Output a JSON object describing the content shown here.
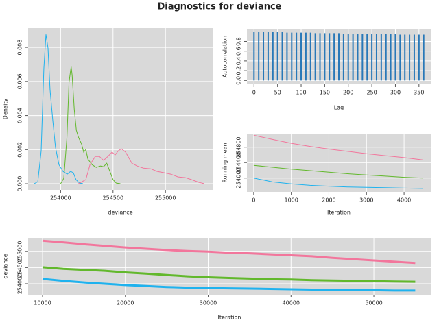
{
  "title": "Diagnostics for deviance",
  "chart_data": [
    {
      "type": "line",
      "xlabel": "deviance",
      "ylabel": "Density",
      "grid": true,
      "xlim": [
        253690,
        255450
      ],
      "ylim": [
        -0.00036,
        0.00913
      ],
      "xticks": [
        254000,
        254500,
        255000
      ],
      "yticks": [
        {
          "value": 0,
          "label": "0.000"
        },
        {
          "value": 0.002,
          "label": "0.002"
        },
        {
          "value": 0.004,
          "label": "0.004"
        },
        {
          "value": 0.006,
          "label": "0.006"
        },
        {
          "value": 0.008,
          "label": "0.008"
        }
      ],
      "series": [
        {
          "color": "#1fb2ee",
          "x": [
            253749,
            253782,
            253814,
            253840,
            253860,
            253880,
            253899,
            253925,
            253951,
            253984,
            254023,
            254063,
            254095,
            254121,
            254147,
            254180,
            254212
          ],
          "values": [
            0,
            0.00012,
            0.00193,
            0.00675,
            0.00876,
            0.00795,
            0.00554,
            0.00373,
            0.00213,
            0.00112,
            0.00072,
            0.00056,
            0.00072,
            0.00064,
            0.00024,
            4e-05,
            0
          ]
        },
        {
          "color": "#62b82c",
          "x": [
            254000,
            254030,
            254060,
            254080,
            254100,
            254110,
            254130,
            254150,
            254170,
            254200,
            254220,
            254240,
            254260,
            254300,
            254340,
            254380,
            254410,
            254440,
            254470,
            254500,
            254530,
            254570
          ],
          "values": [
            0,
            0.00032,
            0.00273,
            0.00594,
            0.00687,
            0.00635,
            0.00434,
            0.00313,
            0.00273,
            0.00233,
            0.00185,
            0.00201,
            0.00145,
            0.00112,
            0.00096,
            0.00104,
            0.001,
            0.0012,
            0.00072,
            0.00024,
            4e-05,
            0
          ]
        },
        {
          "color": "#f2769c",
          "x": [
            254170,
            254240,
            254280,
            254330,
            254370,
            254410,
            254450,
            254490,
            254520,
            254550,
            254580,
            254620,
            254650,
            254680,
            254730,
            254790,
            254860,
            254920,
            254990,
            255050,
            255120,
            255190,
            255250,
            255320,
            255370
          ],
          "values": [
            0,
            0.00024,
            0.00112,
            0.0016,
            0.0016,
            0.00137,
            0.0016,
            0.00185,
            0.00169,
            0.00193,
            0.00205,
            0.00185,
            0.00153,
            0.0012,
            0.00104,
            0.00092,
            0.00088,
            0.00072,
            0.00064,
            0.00056,
            0.0004,
            0.00036,
            0.00024,
            8e-05,
            0
          ]
        }
      ]
    },
    {
      "type": "bar",
      "xlabel": "Lag",
      "ylabel": "Autocorrelation",
      "grid": true,
      "color": "#2878b8",
      "xlim": [
        -15,
        375
      ],
      "ylim": [
        -0.08,
        1.06
      ],
      "xticks": [
        0,
        50,
        100,
        150,
        200,
        250,
        300,
        350
      ],
      "yticks": [
        {
          "value": 0,
          "label": "0.0"
        },
        0.2,
        0.4,
        0.6,
        0.8
      ],
      "x": [
        0,
        10,
        20,
        30,
        40,
        50,
        60,
        70,
        80,
        90,
        100,
        110,
        120,
        130,
        140,
        150,
        160,
        170,
        180,
        190,
        200,
        210,
        220,
        230,
        240,
        250,
        260,
        270,
        280,
        290,
        300,
        310,
        320,
        330,
        340,
        350,
        360
      ],
      "values": [
        1,
        0.99,
        0.99,
        0.99,
        0.99,
        0.99,
        0.99,
        0.98,
        0.98,
        0.98,
        0.98,
        0.98,
        0.98,
        0.97,
        0.97,
        0.97,
        0.97,
        0.97,
        0.97,
        0.96,
        0.96,
        0.96,
        0.96,
        0.96,
        0.96,
        0.95,
        0.95,
        0.95,
        0.95,
        0.95,
        0.95,
        0.94,
        0.94,
        0.94,
        0.94,
        0.94,
        0.94
      ]
    },
    {
      "type": "line",
      "xlabel": "Iteration",
      "ylabel": "Running mean",
      "grid": true,
      "xlim": [
        -180,
        4710
      ],
      "ylim": [
        253640,
        255150
      ],
      "xticks": [
        0,
        1000,
        2000,
        3000,
        4000
      ],
      "yticks": [
        254000,
        254400,
        254800
      ],
      "x": [
        0,
        500,
        1000,
        1500,
        2000,
        2500,
        3000,
        3500,
        4000,
        4500
      ],
      "series": [
        {
          "color": "#f2769c",
          "values": [
            255110,
            255000,
            254900,
            254820,
            254750,
            254690,
            254630,
            254580,
            254530,
            254470
          ]
        },
        {
          "color": "#62b82c",
          "values": [
            254330,
            254280,
            254230,
            254190,
            254150,
            254110,
            254080,
            254050,
            254020,
            254000
          ]
        },
        {
          "color": "#1fb2ee",
          "values": [
            254000,
            253900,
            253850,
            253810,
            253790,
            253770,
            253760,
            253750,
            253740,
            253730
          ]
        }
      ]
    },
    {
      "type": "line",
      "xlabel": "Iteration",
      "ylabel": "deviance",
      "grid": true,
      "thick": true,
      "xlim": [
        8260,
        56870
      ],
      "ylim": [
        253660,
        255420
      ],
      "xticks": [
        10000,
        20000,
        30000,
        40000,
        50000
      ],
      "yticks": [
        254000,
        254500,
        255000
      ],
      "x": [
        10000,
        12500,
        15000,
        17500,
        20000,
        22500,
        25000,
        27500,
        30000,
        32500,
        35000,
        37500,
        40000,
        42500,
        45000,
        47500,
        50000,
        52500,
        55000
      ],
      "series": [
        {
          "color": "#f2769c",
          "values": [
            255330,
            255280,
            255220,
            255170,
            255120,
            255080,
            255040,
            255010,
            254990,
            254960,
            254940,
            254910,
            254880,
            254850,
            254800,
            254760,
            254720,
            254680,
            254640
          ]
        },
        {
          "color": "#62b82c",
          "values": [
            254510,
            254460,
            254430,
            254400,
            254350,
            254310,
            254270,
            254230,
            254200,
            254180,
            254160,
            254140,
            254130,
            254110,
            254100,
            254090,
            254080,
            254070,
            254060
          ]
        },
        {
          "color": "#1fb2ee",
          "values": [
            254150,
            254090,
            254040,
            254000,
            253960,
            253930,
            253900,
            253880,
            253870,
            253860,
            253850,
            253840,
            253830,
            253820,
            253810,
            253810,
            253800,
            253790,
            253790
          ]
        }
      ]
    }
  ]
}
